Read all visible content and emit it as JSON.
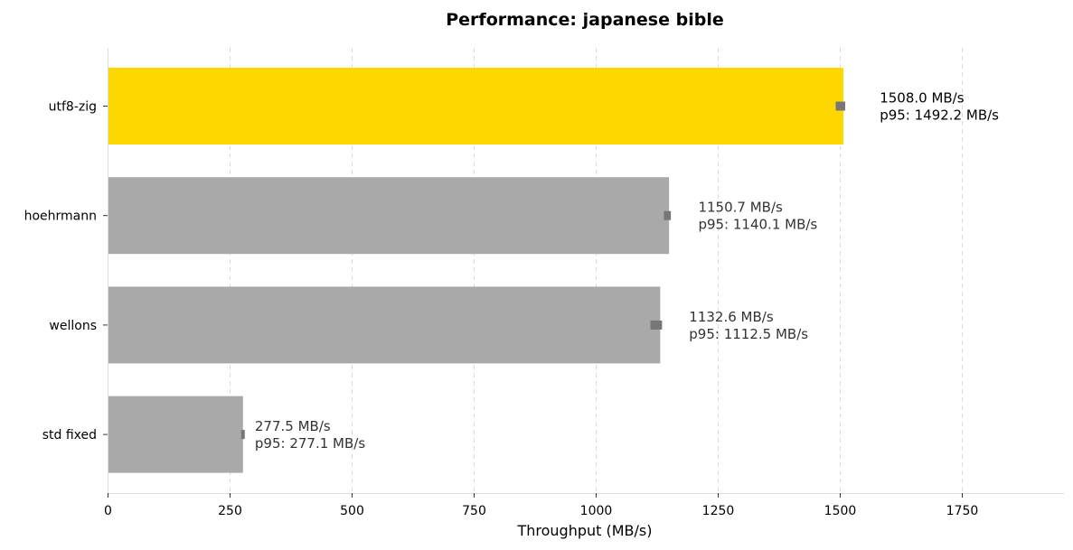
{
  "chart_data": {
    "type": "bar",
    "orientation": "horizontal",
    "title": "Performance: japanese bible",
    "xlabel": "Throughput (MB/s)",
    "ylabel": "",
    "xlim": [
      0,
      1960
    ],
    "xticks": [
      0,
      250,
      500,
      750,
      1000,
      1250,
      1500,
      1750
    ],
    "grid": "x-dashed",
    "categories": [
      "utf8-zig",
      "hoehrmann",
      "wellons",
      "std fixed"
    ],
    "values": [
      1508.0,
      1150.7,
      1132.6,
      277.5
    ],
    "p95": [
      1492.2,
      1140.1,
      1112.5,
      277.1
    ],
    "labels_main": [
      "1508.0 MB/s",
      "1150.7 MB/s",
      "1132.6 MB/s",
      "277.5 MB/s"
    ],
    "labels_p95": [
      "p95: 1492.2 MB/s",
      "p95: 1140.1 MB/s",
      "p95: 1112.5 MB/s",
      "p95: 277.1 MB/s"
    ],
    "colors": [
      "#FFD700",
      "#A9A9A9",
      "#A9A9A9",
      "#A9A9A9"
    ],
    "highlight_label_color": "#000000",
    "label_color": "#333333",
    "errorbar_color": "#777777"
  }
}
